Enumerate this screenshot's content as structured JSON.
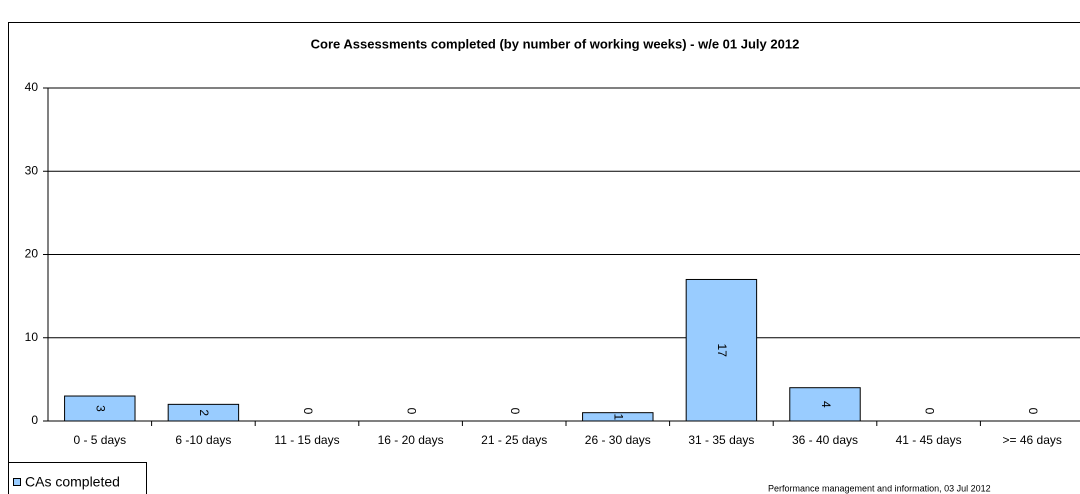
{
  "chart_data": {
    "type": "bar",
    "title": "Core Assessments completed (by number of working weeks) - w/e 01 July 2012",
    "categories": [
      "0 - 5 days",
      "6 -10 days",
      "11 - 15 days",
      "16 - 20 days",
      "21 - 25 days",
      "26 - 30 days",
      "31 - 35 days",
      "36 - 40 days",
      "41 - 45 days",
      ">= 46 days"
    ],
    "series": [
      {
        "name": "CAs completed",
        "color": "#99ccff",
        "values": [
          3,
          2,
          0,
          0,
          0,
          1,
          17,
          4,
          0,
          0
        ]
      }
    ],
    "ylim": [
      0,
      40
    ],
    "yticks": [
      0,
      10,
      20,
      30,
      40
    ],
    "grid": true,
    "legend": "bottom-left",
    "note": "Performance management and information, 03 Jul 2012"
  }
}
